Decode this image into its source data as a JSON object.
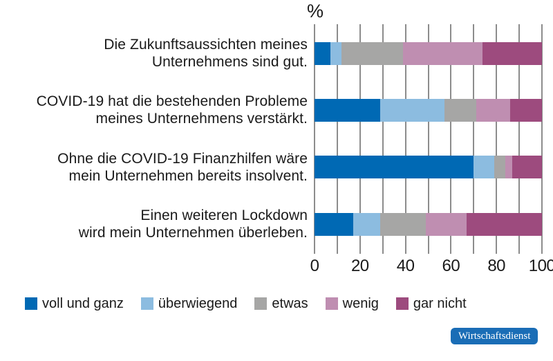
{
  "axis": {
    "unit_label": "%",
    "tick_labels": [
      "0",
      "20",
      "40",
      "60",
      "80",
      "100"
    ]
  },
  "colors": {
    "voll_und_ganz": "#0069b4",
    "ueberwiegend": "#8cbce0",
    "etwas": "#a6a6a5",
    "wenig": "#bf8eb1",
    "gar_nicht": "#9d4b7e",
    "grid": "#8c8c8c",
    "text": "#1a1a1a",
    "badge_bg": "#1a6db6",
    "badge_text": "#ffffff"
  },
  "chart_data": {
    "type": "bar",
    "orientation": "horizontal",
    "stacked": true,
    "unit": "%",
    "title": "",
    "xlabel": "%",
    "ylabel": "",
    "xlim": [
      0,
      100
    ],
    "x_ticks": [
      0,
      20,
      40,
      60,
      80,
      100
    ],
    "grid": true,
    "legend_position": "bottom",
    "categories": [
      "Die Zukunftsaussichten meines Unternehmens sind gut.",
      "COVID-19 hat die bestehenden Probleme meines Unternehmens verstärkt.",
      "Ohne die COVID-19 Finanzhilfen wäre mein Unternehmen bereits insolvent.",
      "Einen weiteren Lockdown wird mein Unternehmen überleben."
    ],
    "category_lines": [
      [
        "Die Zukunftsaussichten meines",
        "Unternehmens sind gut."
      ],
      [
        "COVID-19 hat die bestehenden Probleme",
        "meines Unternehmens verstärkt."
      ],
      [
        "Ohne die COVID-19 Finanzhilfen wäre",
        "mein Unternehmen bereits insolvent."
      ],
      [
        "Einen weiteren Lockdown",
        "wird mein Unternehmen überleben."
      ]
    ],
    "series": [
      {
        "name": "voll und ganz",
        "color": "#0069b4",
        "values": [
          7,
          29,
          70,
          17
        ]
      },
      {
        "name": "überwiegend",
        "color": "#8cbce0",
        "values": [
          5,
          28,
          9,
          12
        ]
      },
      {
        "name": "etwas",
        "color": "#a6a6a5",
        "values": [
          27,
          14,
          5,
          20
        ]
      },
      {
        "name": "wenig",
        "color": "#bf8eb1",
        "values": [
          35,
          15,
          3,
          18
        ]
      },
      {
        "name": "gar nicht",
        "color": "#9d4b7e",
        "values": [
          26,
          14,
          13,
          33
        ]
      }
    ]
  },
  "legend": {
    "items": [
      {
        "label": "voll und ganz",
        "color": "#0069b4"
      },
      {
        "label": "überwiegend",
        "color": "#8cbce0"
      },
      {
        "label": "etwas",
        "color": "#a6a6a5"
      },
      {
        "label": "wenig",
        "color": "#bf8eb1"
      },
      {
        "label": "gar nicht",
        "color": "#9d4b7e"
      }
    ]
  },
  "badge": {
    "label": "Wirtschaftsdienst"
  }
}
